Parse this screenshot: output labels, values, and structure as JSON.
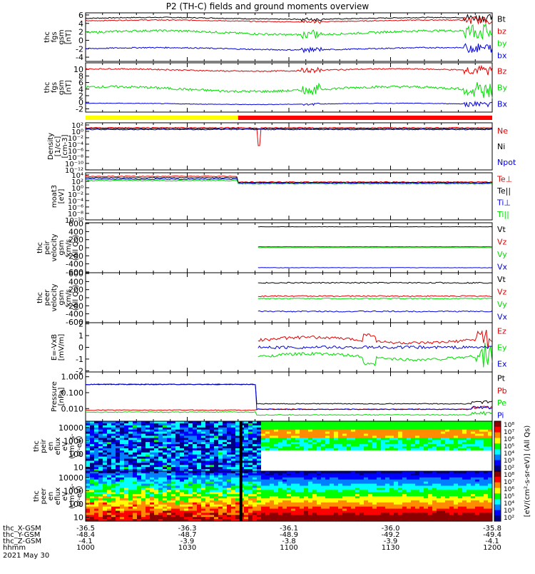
{
  "figure": {
    "title": "P2 (TH-C) fields and ground moments overview",
    "date_label": "2021 May 30"
  },
  "chart_data": [
    {
      "id": "fgs_gsm",
      "type": "line",
      "ylabel": [
        "thc",
        "fgs",
        "gsm",
        "[nT]"
      ],
      "ylim": [
        -5,
        6.5
      ],
      "yticks": [
        6,
        4,
        2,
        0,
        -2,
        -4
      ],
      "series": [
        {
          "name": "Bt",
          "color": "#000000",
          "base": 5.2,
          "amp": 0.35
        },
        {
          "name": "bz",
          "color": "#e00000",
          "base": 4.6,
          "amp": 0.35
        },
        {
          "name": "by",
          "color": "#00dd00",
          "base": 1.8,
          "amp": 0.8
        },
        {
          "name": "bx",
          "color": "#0000dd",
          "base": -2.0,
          "amp": 0.45
        }
      ]
    },
    {
      "id": "fgs_gsm2",
      "type": "line",
      "ylabel": [
        "thc",
        "fgs",
        "gsm",
        "[nT]"
      ],
      "ylim": [
        -3,
        12
      ],
      "yticks": [
        10,
        8,
        6,
        4,
        2,
        0,
        -2
      ],
      "series": [
        {
          "name": "Bz",
          "color": "#e00000",
          "base": 9.8,
          "amp": 0.6
        },
        {
          "name": "By",
          "color": "#00dd00",
          "base": 4.0,
          "amp": 1.2
        },
        {
          "name": "Bx",
          "color": "#0000dd",
          "base": -0.5,
          "amp": 0.3
        }
      ]
    },
    {
      "id": "density",
      "type": "line",
      "ylabel": [
        "Density",
        "[1/cc]",
        "[cm-3]"
      ],
      "ylim": [
        -14,
        3
      ],
      "yticks": [
        "10²",
        "10⁰",
        "10⁻²",
        "10⁻⁴",
        "10⁻⁶",
        "10⁻⁸",
        "10⁻¹⁰",
        "10⁻¹²"
      ],
      "series": [
        {
          "name": "Ne",
          "color": "#e00000"
        },
        {
          "name": "Ni",
          "color": "#000000"
        },
        {
          "name": "Npot",
          "color": "#0000dd"
        }
      ]
    },
    {
      "id": "temp",
      "type": "line",
      "ylabel": [
        "moat3",
        "[eV]"
      ],
      "ylim": [
        -11,
        4.5
      ],
      "yticks": [
        "10⁴",
        "10²",
        "10⁰",
        "10⁻²",
        "10⁻⁴",
        "10⁻⁶",
        "10⁻⁸",
        "10⁻¹⁰"
      ],
      "series": [
        {
          "name": "Te⊥",
          "color": "#e00000"
        },
        {
          "name": "Te||",
          "color": "#000000"
        },
        {
          "name": "Ti⊥",
          "color": "#0000dd"
        },
        {
          "name": "Ti||",
          "color": "#00dd00"
        }
      ]
    },
    {
      "id": "peir_vel",
      "type": "line",
      "ylabel": [
        "thc",
        "peir",
        "velocity",
        "gsm",
        "km/s",
        "(All Qs)"
      ],
      "ylim": [
        -620,
        620
      ],
      "yticks": [
        600,
        400,
        200,
        0,
        -200,
        -400,
        -600
      ],
      "series": [
        {
          "name": "Vt",
          "color": "#000000",
          "value": 520
        },
        {
          "name": "Vz",
          "color": "#e00000",
          "value": 25
        },
        {
          "name": "Vy",
          "color": "#00dd00",
          "value": 5
        },
        {
          "name": "Vx",
          "color": "#0000dd",
          "value": -495
        }
      ]
    },
    {
      "id": "peer_vel",
      "type": "line",
      "ylabel": [
        "thc",
        "peer",
        "velocity",
        "gsm",
        "km/s",
        "(All Qs)"
      ],
      "ylim": [
        -620,
        620
      ],
      "yticks": [
        600,
        400,
        200,
        0,
        -200,
        -400,
        -600
      ],
      "series": [
        {
          "name": "Vt",
          "color": "#000000",
          "value": 370
        },
        {
          "name": "Vz",
          "color": "#e00000",
          "value": 40
        },
        {
          "name": "Vy",
          "color": "#00dd00",
          "value": -20
        },
        {
          "name": "Vx",
          "color": "#0000dd",
          "value": -340
        }
      ]
    },
    {
      "id": "efield",
      "type": "line",
      "ylabel": [
        "E=-VxB",
        "[mV/m]"
      ],
      "ylim": [
        -2.1,
        2.1
      ],
      "yticks": [
        2,
        1,
        0,
        -1,
        -2
      ],
      "series": [
        {
          "name": "Ez",
          "color": "#e00000",
          "base": 0.6
        },
        {
          "name": "Ey",
          "color": "#00dd00",
          "base": -0.8
        },
        {
          "name": "Ex",
          "color": "#0000dd",
          "base": 0.0
        }
      ]
    },
    {
      "id": "pressure",
      "type": "line",
      "ylabel": [
        "Pressure",
        "[nPa]"
      ],
      "ylim": [
        0.0016,
        2.0
      ],
      "yscale": "log",
      "yticks": [
        "1.000",
        "0.100",
        "0.010",
        "0.001"
      ],
      "series": [
        {
          "name": "Pt",
          "color": "#000000"
        },
        {
          "name": "Pb",
          "color": "#e00000"
        },
        {
          "name": "Pe",
          "color": "#00dd00"
        },
        {
          "name": "Pi",
          "color": "#0000dd"
        }
      ]
    },
    {
      "id": "peir_en",
      "type": "heatmap",
      "ylabel": [
        "thc",
        "peir",
        "en",
        "eflux",
        "eV",
        "(cm²-s-",
        "sr-eV)"
      ],
      "yscale": "log",
      "ylim": [
        5,
        30000
      ],
      "yticks": [
        "10000",
        "1000",
        "100",
        "10"
      ]
    },
    {
      "id": "peer_en",
      "type": "heatmap",
      "ylabel": [
        "thc",
        "peer",
        "en",
        "eflux",
        "eV",
        "(cm²-s-",
        "sr-eV)"
      ],
      "yscale": "log",
      "ylim": [
        5,
        30000
      ],
      "yticks": [
        "10000",
        "1000",
        "100",
        "10"
      ]
    }
  ],
  "colorbar": {
    "label": "[eV/(cm²-s-sr-eV)] (All Qs)",
    "ticks_top": [
      "10⁸",
      "10⁷",
      "10⁶",
      "10⁵",
      "10⁴",
      "10³",
      "10²"
    ],
    "ticks_bottom": [
      "10⁸",
      "10⁷",
      "10⁶",
      "10⁵",
      "10⁴",
      "10³",
      "10²"
    ],
    "colors": [
      "#8b0000",
      "#ff0000",
      "#ff8c00",
      "#ffff00",
      "#00ff00",
      "#00ffff",
      "#0080ff",
      "#0000ff",
      "#000080"
    ]
  },
  "mode_bar": {
    "left_color": "#ffff00",
    "right_color": "#ff0000",
    "split_time": 1045
  },
  "x_axis": {
    "range_minutes": [
      1000,
      1200
    ],
    "ticks": [
      {
        "hhmm": "1000",
        "x": "-36.5",
        "y": "-48.4",
        "z": "-4.1"
      },
      {
        "hhmm": "1030",
        "x": "-36.3",
        "y": "-48.7",
        "z": "-3.9"
      },
      {
        "hhmm": "1100",
        "x": "-36.1",
        "y": "-48.9",
        "z": "-3.8"
      },
      {
        "hhmm": "1130",
        "x": "-36.0",
        "y": "-49.2",
        "z": "-3.9"
      },
      {
        "hhmm": "1200",
        "x": "-35.8",
        "y": "-49.4",
        "z": "-4.1"
      }
    ],
    "row_labels": [
      "thc_X-GSM",
      "thc_Y-GSM",
      "thc_Z-GSM",
      "hhmm"
    ]
  }
}
